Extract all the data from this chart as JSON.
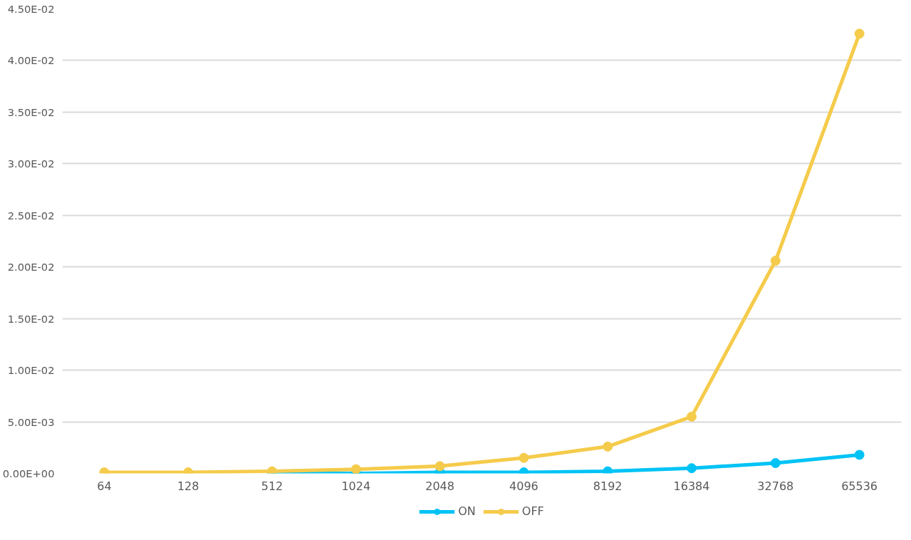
{
  "chart_data": {
    "type": "line",
    "categories": [
      "64",
      "128",
      "512",
      "1024",
      "2048",
      "4096",
      "8192",
      "16384",
      "32768",
      "65536"
    ],
    "series": [
      {
        "name": "ON",
        "color": "#00c3f5",
        "values": [
          null,
          null,
          0,
          0,
          0.0001,
          0.0001,
          0.0002,
          0.0005,
          0.001,
          0.0018
        ]
      },
      {
        "name": "OFF",
        "color": "#f5cb4b",
        "values": [
          0.0001,
          0.0001,
          0.0002,
          0.0004,
          0.0007,
          0.0015,
          0.0026,
          0.0055,
          0.0206,
          0.0426
        ]
      }
    ],
    "ylim": [
      0,
      0.045
    ],
    "yticks": [
      {
        "value": 0,
        "label": "0.00E+00"
      },
      {
        "value": 0.005,
        "label": "5.00E-03"
      },
      {
        "value": 0.01,
        "label": "1.00E-02"
      },
      {
        "value": 0.015,
        "label": "1.50E-02"
      },
      {
        "value": 0.02,
        "label": "2.00E-02"
      },
      {
        "value": 0.025,
        "label": "2.50E-02"
      },
      {
        "value": 0.03,
        "label": "3.00E-02"
      },
      {
        "value": 0.035,
        "label": "3.50E-02"
      },
      {
        "value": 0.04,
        "label": "4.00E-02"
      },
      {
        "value": 0.045,
        "label": "4.50E-02"
      }
    ],
    "grid": "y",
    "legend": "bottom",
    "marker": "circle",
    "line_style": "solid"
  }
}
